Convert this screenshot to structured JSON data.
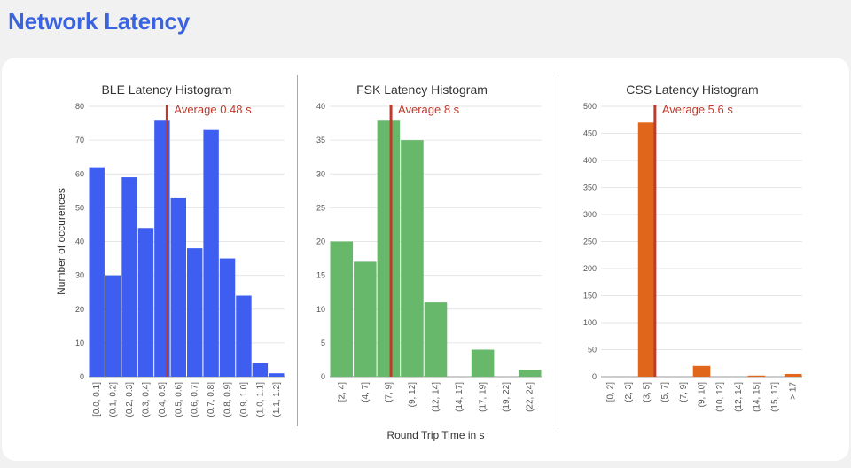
{
  "page": {
    "title": "Network Latency"
  },
  "colors": {
    "ble": "#3d5ef0",
    "fsk": "#67b86a",
    "css": "#e0661b",
    "average_line": "#c0392b",
    "grid": "#e6e6e6",
    "title": "#3a63e0"
  },
  "chart_data": [
    {
      "type": "bar",
      "title": "BLE Latency Histogram",
      "xlabel": "",
      "ylabel": "Number of occurences",
      "categories": [
        "[0.0, 0.1]",
        "(0.1, 0.2]",
        "(0.2, 0.3]",
        "(0.3, 0.4]",
        "(0.4, 0.5]",
        "(0.5, 0.6]",
        "(0.6, 0.7]",
        "(0.7, 0.8]",
        "(0.8, 0.9]",
        "(0.9, 1.0]",
        "(1.0, 1.1]",
        "(1.1, 1.2]"
      ],
      "values": [
        62,
        30,
        59,
        44,
        76,
        53,
        38,
        73,
        35,
        24,
        4,
        1
      ],
      "ylim": [
        0,
        80
      ],
      "yticks": [
        0,
        10,
        20,
        30,
        40,
        50,
        60,
        70,
        80
      ],
      "grid": true,
      "color": "#3d5ef0",
      "annotation": {
        "label": "Average 0.48 s",
        "x_bin_position": 4.8
      }
    },
    {
      "type": "bar",
      "title": "FSK Latency Histogram",
      "xlabel": "Round Trip Time in s",
      "ylabel": "",
      "categories": [
        "[2, 4]",
        "(4, 7]",
        "(7, 9]",
        "(9, 12]",
        "(12, 14]",
        "(14, 17]",
        "(17, 19]",
        "(19, 22]",
        "(22, 24]"
      ],
      "values": [
        20,
        17,
        38,
        35,
        11,
        0,
        4,
        0,
        1
      ],
      "ylim": [
        0,
        40
      ],
      "yticks": [
        0,
        5,
        10,
        15,
        20,
        25,
        30,
        35,
        40
      ],
      "grid": true,
      "color": "#67b86a",
      "annotation": {
        "label": "Average 8 s",
        "x_bin_position": 2.6
      }
    },
    {
      "type": "bar",
      "title": "CSS Latency Histogram",
      "xlabel": "",
      "ylabel": "",
      "categories": [
        "[0, 2]",
        "(2, 3]",
        "(3, 5]",
        "(5, 7]",
        "(7, 9]",
        "(9, 10]",
        "(10, 12]",
        "(12, 14]",
        "(14, 15]",
        "(15, 17]",
        "> 17"
      ],
      "values": [
        0,
        0,
        470,
        0,
        0,
        20,
        0,
        0,
        2,
        0,
        5
      ],
      "ylim": [
        0,
        500
      ],
      "yticks": [
        0,
        50,
        100,
        150,
        200,
        250,
        300,
        350,
        400,
        450,
        500
      ],
      "grid": true,
      "color": "#e0661b",
      "annotation": {
        "label": "Average 5.6 s",
        "x_bin_position": 2.95
      }
    }
  ]
}
